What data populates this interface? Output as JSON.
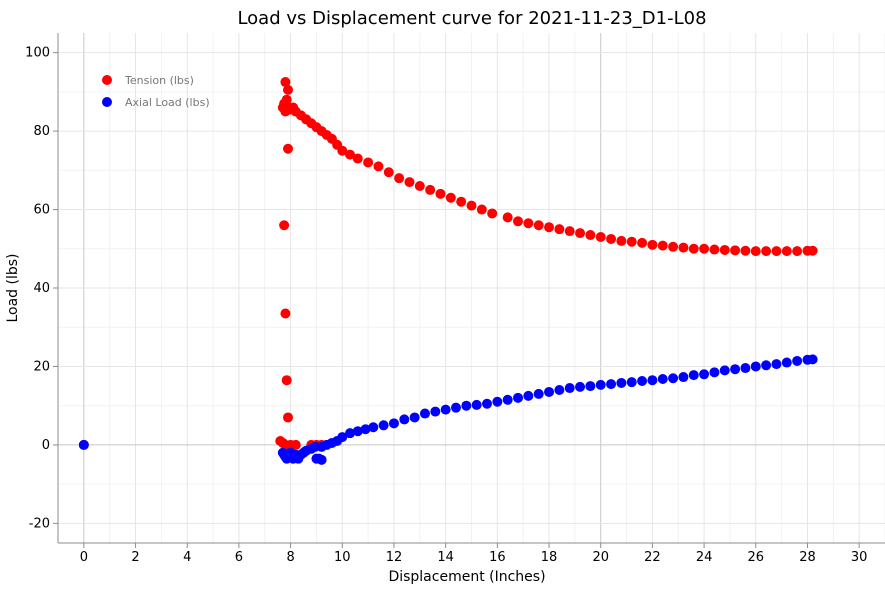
{
  "chart_data": {
    "type": "scatter",
    "title": "Load vs Displacement curve for 2021-11-23_D1-L08",
    "xlabel": "Displacement (Inches)",
    "ylabel": "Load (lbs)",
    "xlim": [
      -1,
      31
    ],
    "ylim": [
      -25,
      105
    ],
    "xticks": [
      0,
      2,
      4,
      6,
      8,
      10,
      12,
      14,
      16,
      18,
      20,
      22,
      24,
      26,
      28,
      30
    ],
    "yticks": [
      -20,
      0,
      20,
      40,
      60,
      80,
      100
    ],
    "grid": true,
    "legend_position": "top-left",
    "series": [
      {
        "name": "Tension (lbs)",
        "color": "#ff0000",
        "points": [
          [
            0,
            0
          ],
          [
            7.6,
            1
          ],
          [
            7.7,
            0.5
          ],
          [
            7.8,
            0
          ],
          [
            8.0,
            0
          ],
          [
            8.2,
            0
          ],
          [
            8.8,
            0
          ],
          [
            9.0,
            0
          ],
          [
            9.2,
            0
          ],
          [
            7.75,
            56
          ],
          [
            7.8,
            33.5
          ],
          [
            7.85,
            16.5
          ],
          [
            7.9,
            7
          ],
          [
            7.9,
            75.5
          ],
          [
            7.8,
            92.5
          ],
          [
            7.9,
            90.5
          ],
          [
            7.7,
            86
          ],
          [
            7.75,
            87
          ],
          [
            7.8,
            85
          ],
          [
            7.85,
            88
          ],
          [
            7.95,
            86
          ],
          [
            8.0,
            85.5
          ],
          [
            8.1,
            86
          ],
          [
            8.2,
            85
          ],
          [
            8.4,
            84
          ],
          [
            8.6,
            83
          ],
          [
            8.8,
            82
          ],
          [
            9.0,
            81
          ],
          [
            9.2,
            80
          ],
          [
            9.4,
            79
          ],
          [
            9.6,
            78
          ],
          [
            9.8,
            76.5
          ],
          [
            10.0,
            75
          ],
          [
            10.3,
            74
          ],
          [
            10.6,
            73
          ],
          [
            11.0,
            72
          ],
          [
            11.4,
            71
          ],
          [
            11.8,
            69.5
          ],
          [
            12.2,
            68
          ],
          [
            12.6,
            67
          ],
          [
            13.0,
            66
          ],
          [
            13.4,
            65
          ],
          [
            13.8,
            64
          ],
          [
            14.2,
            63
          ],
          [
            14.6,
            62
          ],
          [
            15.0,
            61
          ],
          [
            15.4,
            60
          ],
          [
            15.8,
            59
          ],
          [
            16.4,
            58
          ],
          [
            16.8,
            57
          ],
          [
            17.2,
            56.5
          ],
          [
            17.6,
            56
          ],
          [
            18.0,
            55.5
          ],
          [
            18.4,
            55
          ],
          [
            18.8,
            54.5
          ],
          [
            19.2,
            54
          ],
          [
            19.6,
            53.5
          ],
          [
            20.0,
            53
          ],
          [
            20.4,
            52.5
          ],
          [
            20.8,
            52
          ],
          [
            21.2,
            51.8
          ],
          [
            21.6,
            51.5
          ],
          [
            22.0,
            51
          ],
          [
            22.4,
            50.8
          ],
          [
            22.8,
            50.5
          ],
          [
            23.2,
            50.3
          ],
          [
            23.6,
            50
          ],
          [
            24.0,
            50
          ],
          [
            24.4,
            49.8
          ],
          [
            24.8,
            49.7
          ],
          [
            25.2,
            49.6
          ],
          [
            25.6,
            49.5
          ],
          [
            26.0,
            49.4
          ],
          [
            26.4,
            49.4
          ],
          [
            26.8,
            49.4
          ],
          [
            27.2,
            49.4
          ],
          [
            27.6,
            49.4
          ],
          [
            28.0,
            49.5
          ],
          [
            28.2,
            49.5
          ]
        ]
      },
      {
        "name": "Axial Load (lbs)",
        "color": "#0000ff",
        "points": [
          [
            0,
            0
          ],
          [
            7.7,
            -2
          ],
          [
            7.75,
            -2.5
          ],
          [
            7.8,
            -3
          ],
          [
            7.85,
            -3.5
          ],
          [
            7.9,
            -2.5
          ],
          [
            7.95,
            -3
          ],
          [
            8.0,
            -2
          ],
          [
            8.1,
            -3.5
          ],
          [
            8.2,
            -2.5
          ],
          [
            8.3,
            -3.5
          ],
          [
            8.4,
            -2.5
          ],
          [
            8.5,
            -2
          ],
          [
            8.6,
            -1.5
          ],
          [
            8.8,
            -1
          ],
          [
            9.0,
            -3.5
          ],
          [
            9.1,
            -3.5
          ],
          [
            9.2,
            -3.8
          ],
          [
            8.95,
            -0.5
          ],
          [
            9.2,
            -0.5
          ],
          [
            9.4,
            0
          ],
          [
            9.6,
            0.5
          ],
          [
            9.8,
            1
          ],
          [
            10.0,
            2
          ],
          [
            10.3,
            3
          ],
          [
            10.6,
            3.5
          ],
          [
            10.9,
            4
          ],
          [
            11.2,
            4.5
          ],
          [
            11.6,
            5
          ],
          [
            12.0,
            5.5
          ],
          [
            12.4,
            6.5
          ],
          [
            12.8,
            7
          ],
          [
            13.2,
            8
          ],
          [
            13.6,
            8.5
          ],
          [
            14.0,
            9
          ],
          [
            14.4,
            9.5
          ],
          [
            14.8,
            10
          ],
          [
            15.2,
            10.2
          ],
          [
            15.6,
            10.5
          ],
          [
            16.0,
            11
          ],
          [
            16.4,
            11.5
          ],
          [
            16.8,
            12
          ],
          [
            17.2,
            12.5
          ],
          [
            17.6,
            13
          ],
          [
            18.0,
            13.5
          ],
          [
            18.4,
            14
          ],
          [
            18.8,
            14.5
          ],
          [
            19.2,
            14.8
          ],
          [
            19.6,
            15
          ],
          [
            20.0,
            15.3
          ],
          [
            20.4,
            15.5
          ],
          [
            20.8,
            15.8
          ],
          [
            21.2,
            16
          ],
          [
            21.6,
            16.3
          ],
          [
            22.0,
            16.5
          ],
          [
            22.4,
            16.8
          ],
          [
            22.8,
            17
          ],
          [
            23.2,
            17.3
          ],
          [
            23.6,
            17.8
          ],
          [
            24.0,
            18
          ],
          [
            24.4,
            18.5
          ],
          [
            24.8,
            19
          ],
          [
            25.2,
            19.3
          ],
          [
            25.6,
            19.6
          ],
          [
            26.0,
            20
          ],
          [
            26.4,
            20.3
          ],
          [
            26.8,
            20.6
          ],
          [
            27.2,
            21
          ],
          [
            27.6,
            21.4
          ],
          [
            28.0,
            21.7
          ],
          [
            28.2,
            21.8
          ]
        ]
      }
    ]
  }
}
